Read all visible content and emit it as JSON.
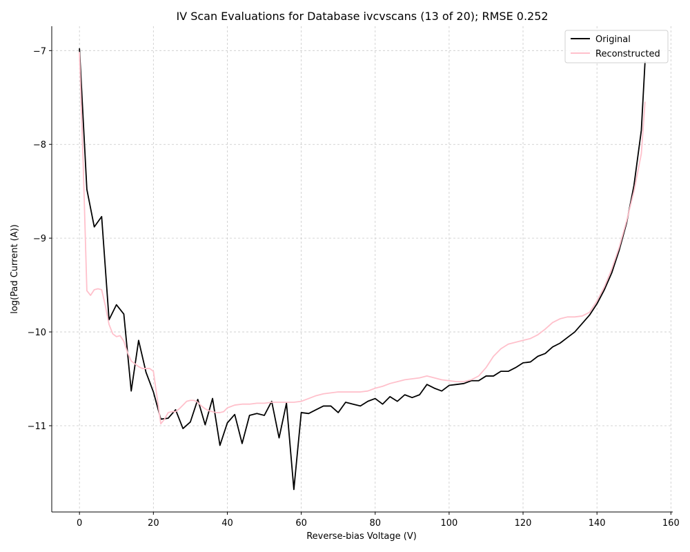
{
  "chart_data": {
    "type": "line",
    "title": "IV Scan Evaluations for Database ivcvscans (13 of 20); RMSE 0.252",
    "xlabel": "Reverse-bias Voltage (V)",
    "ylabel": "log(Pad Current (A))",
    "xlim": [
      -7.5,
      160.5
    ],
    "ylim": [
      -11.92,
      -6.74
    ],
    "xticks": [
      0,
      20,
      40,
      60,
      80,
      100,
      120,
      140,
      160
    ],
    "yticks": [
      -11,
      -10,
      -9,
      -8,
      -7
    ],
    "xtick_labels": [
      "0",
      "20",
      "40",
      "60",
      "80",
      "100",
      "120",
      "140",
      "160"
    ],
    "ytick_labels": [
      "−11",
      "−10",
      "−9",
      "−8",
      "−7"
    ],
    "grid": true,
    "legend_position": "top-right",
    "series": [
      {
        "name": "Original",
        "color": "#000000",
        "x": [
          0,
          2,
          4,
          6,
          8,
          10,
          12,
          14,
          16,
          18,
          20,
          22,
          24,
          26,
          28,
          30,
          32,
          34,
          36,
          38,
          40,
          42,
          44,
          46,
          48,
          50,
          52,
          54,
          56,
          58,
          60,
          62,
          64,
          66,
          68,
          70,
          72,
          74,
          76,
          78,
          80,
          82,
          84,
          86,
          88,
          90,
          92,
          94,
          96,
          98,
          100,
          102,
          104,
          106,
          108,
          110,
          112,
          114,
          116,
          118,
          120,
          122,
          124,
          126,
          128,
          130,
          132,
          134,
          136,
          138,
          140,
          142,
          144,
          146,
          148,
          150,
          152,
          153
        ],
        "y": [
          -6.98,
          -8.48,
          -8.88,
          -8.77,
          -9.87,
          -9.71,
          -9.81,
          -10.63,
          -10.09,
          -10.43,
          -10.64,
          -10.93,
          -10.92,
          -10.83,
          -11.03,
          -10.96,
          -10.72,
          -10.99,
          -10.71,
          -11.21,
          -10.97,
          -10.88,
          -11.19,
          -10.89,
          -10.87,
          -10.89,
          -10.74,
          -11.13,
          -10.76,
          -11.68,
          -10.86,
          -10.87,
          -10.83,
          -10.79,
          -10.79,
          -10.86,
          -10.75,
          -10.77,
          -10.79,
          -10.74,
          -10.71,
          -10.77,
          -10.69,
          -10.74,
          -10.67,
          -10.7,
          -10.67,
          -10.56,
          -10.6,
          -10.63,
          -10.57,
          -10.56,
          -10.55,
          -10.52,
          -10.52,
          -10.47,
          -10.47,
          -10.42,
          -10.42,
          -10.38,
          -10.33,
          -10.32,
          -10.26,
          -10.23,
          -10.16,
          -10.12,
          -10.06,
          -10.0,
          -9.91,
          -9.82,
          -9.7,
          -9.55,
          -9.37,
          -9.13,
          -8.84,
          -8.44,
          -7.85,
          -7.12
        ]
      },
      {
        "name": "Reconstructed",
        "color": "#ffc0cb",
        "x": [
          0,
          1,
          2,
          3,
          4,
          5,
          6,
          7,
          8,
          9,
          10,
          11,
          12,
          13,
          14,
          15,
          16,
          17,
          18,
          19,
          20,
          21,
          22,
          23,
          24,
          25,
          26,
          27,
          28,
          29,
          30,
          31,
          32,
          33,
          34,
          35,
          36,
          37,
          38,
          39,
          40,
          42,
          44,
          46,
          48,
          50,
          52,
          54,
          56,
          58,
          60,
          62,
          64,
          66,
          68,
          70,
          72,
          74,
          76,
          78,
          80,
          82,
          84,
          86,
          88,
          90,
          92,
          94,
          96,
          98,
          100,
          102,
          104,
          106,
          108,
          110,
          112,
          114,
          116,
          118,
          120,
          122,
          124,
          126,
          128,
          130,
          132,
          134,
          136,
          138,
          140,
          142,
          144,
          146,
          148,
          150,
          152,
          153
        ],
        "y": [
          -7.02,
          -8.2,
          -9.56,
          -9.61,
          -9.55,
          -9.54,
          -9.55,
          -9.72,
          -9.92,
          -10.02,
          -10.05,
          -10.04,
          -10.1,
          -10.22,
          -10.31,
          -10.34,
          -10.37,
          -10.39,
          -10.39,
          -10.39,
          -10.42,
          -10.7,
          -10.98,
          -10.93,
          -10.86,
          -10.85,
          -10.85,
          -10.82,
          -10.78,
          -10.74,
          -10.73,
          -10.73,
          -10.75,
          -10.79,
          -10.82,
          -10.84,
          -10.85,
          -10.86,
          -10.86,
          -10.85,
          -10.81,
          -10.78,
          -10.77,
          -10.77,
          -10.76,
          -10.76,
          -10.75,
          -10.75,
          -10.75,
          -10.75,
          -10.74,
          -10.71,
          -10.68,
          -10.66,
          -10.65,
          -10.64,
          -10.64,
          -10.64,
          -10.64,
          -10.63,
          -10.6,
          -10.58,
          -10.55,
          -10.53,
          -10.51,
          -10.5,
          -10.49,
          -10.47,
          -10.49,
          -10.51,
          -10.52,
          -10.53,
          -10.53,
          -10.51,
          -10.47,
          -10.38,
          -10.26,
          -10.18,
          -10.13,
          -10.11,
          -10.09,
          -10.07,
          -10.03,
          -9.97,
          -9.9,
          -9.86,
          -9.84,
          -9.84,
          -9.83,
          -9.79,
          -9.67,
          -9.52,
          -9.33,
          -9.1,
          -8.82,
          -8.5,
          -8.1,
          -7.55
        ]
      }
    ]
  }
}
